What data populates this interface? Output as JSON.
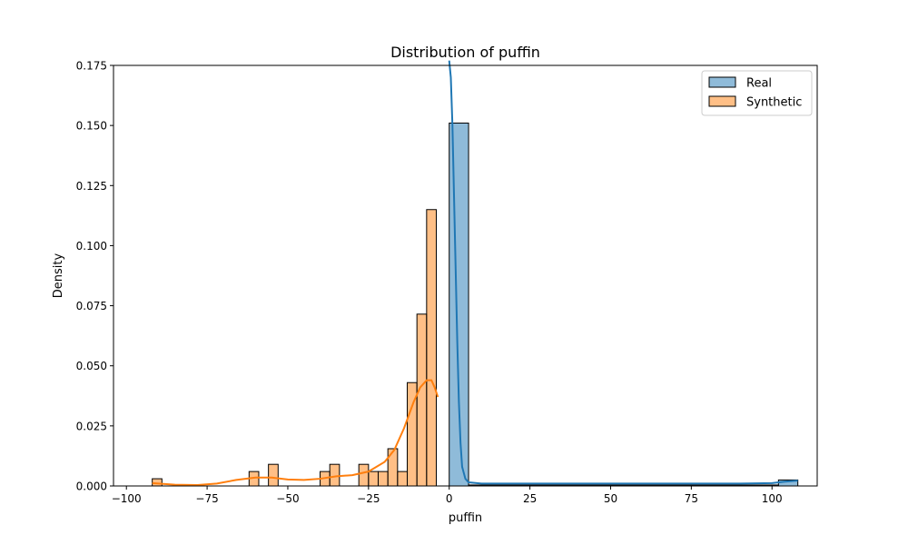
{
  "chart_data": {
    "type": "histogram",
    "title": "Distribution of puffin",
    "xlabel": "puffin",
    "ylabel": "Density",
    "xlim": [
      -104,
      114
    ],
    "ylim": [
      0,
      0.175
    ],
    "x_ticks": [
      -100,
      -75,
      -50,
      -25,
      0,
      25,
      50,
      75,
      100
    ],
    "y_ticks": [
      0.0,
      0.025,
      0.05,
      0.075,
      0.1,
      0.125,
      0.15,
      0.175
    ],
    "x_tick_labels": [
      "−100",
      "−75",
      "−50",
      "−25",
      "0",
      "25",
      "50",
      "75",
      "100"
    ],
    "y_tick_labels": [
      "0.000",
      "0.025",
      "0.050",
      "0.075",
      "0.100",
      "0.125",
      "0.150",
      "0.175"
    ],
    "legend_position": "top-right",
    "grid": false,
    "series": [
      {
        "name": "Real",
        "color": "#1f77b4",
        "bins": [
          {
            "x0": 0.0,
            "x1": 6.0,
            "density": 0.151
          },
          {
            "x0": 6.0,
            "x1": 102.0,
            "density": 0.0004
          },
          {
            "x0": 102.0,
            "x1": 108.0,
            "density": 0.0025
          }
        ],
        "kde": [
          [
            0.0,
            0.177
          ],
          [
            0.5,
            0.17
          ],
          [
            1.0,
            0.15
          ],
          [
            1.5,
            0.12
          ],
          [
            2.0,
            0.09
          ],
          [
            2.5,
            0.06
          ],
          [
            3.0,
            0.035
          ],
          [
            3.5,
            0.018
          ],
          [
            4.0,
            0.008
          ],
          [
            5.0,
            0.003
          ],
          [
            6.0,
            0.0015
          ],
          [
            10.0,
            0.001
          ],
          [
            30.0,
            0.001
          ],
          [
            60.0,
            0.001
          ],
          [
            90.0,
            0.001
          ],
          [
            100.0,
            0.0012
          ],
          [
            104.0,
            0.0018
          ],
          [
            108.0,
            0.0022
          ]
        ]
      },
      {
        "name": "Synthetic",
        "color": "#ff7f0e",
        "bins": [
          {
            "x0": -92.0,
            "x1": -89.0,
            "density": 0.003
          },
          {
            "x0": -62.0,
            "x1": -59.0,
            "density": 0.006
          },
          {
            "x0": -56.0,
            "x1": -53.0,
            "density": 0.009
          },
          {
            "x0": -40.0,
            "x1": -37.0,
            "density": 0.006
          },
          {
            "x0": -37.0,
            "x1": -34.0,
            "density": 0.009
          },
          {
            "x0": -28.0,
            "x1": -25.0,
            "density": 0.009
          },
          {
            "x0": -25.0,
            "x1": -22.0,
            "density": 0.006
          },
          {
            "x0": -22.0,
            "x1": -19.0,
            "density": 0.006
          },
          {
            "x0": -19.0,
            "x1": -16.0,
            "density": 0.0155
          },
          {
            "x0": -16.0,
            "x1": -13.0,
            "density": 0.006
          },
          {
            "x0": -13.0,
            "x1": -10.0,
            "density": 0.043
          },
          {
            "x0": -10.0,
            "x1": -7.0,
            "density": 0.0715
          },
          {
            "x0": -7.0,
            "x1": -4.0,
            "density": 0.115
          }
        ],
        "kde": [
          [
            -92.0,
            0.0012
          ],
          [
            -85.0,
            0.0005
          ],
          [
            -78.0,
            0.0004
          ],
          [
            -72.0,
            0.001
          ],
          [
            -66.0,
            0.0025
          ],
          [
            -60.0,
            0.0035
          ],
          [
            -55.0,
            0.0035
          ],
          [
            -50.0,
            0.0027
          ],
          [
            -45.0,
            0.0025
          ],
          [
            -40.0,
            0.003
          ],
          [
            -35.0,
            0.004
          ],
          [
            -30.0,
            0.0045
          ],
          [
            -25.0,
            0.006
          ],
          [
            -20.0,
            0.01
          ],
          [
            -17.0,
            0.015
          ],
          [
            -14.0,
            0.024
          ],
          [
            -11.0,
            0.035
          ],
          [
            -9.0,
            0.041
          ],
          [
            -7.0,
            0.044
          ],
          [
            -5.5,
            0.044
          ],
          [
            -4.5,
            0.041
          ],
          [
            -3.5,
            0.037
          ]
        ]
      }
    ]
  }
}
